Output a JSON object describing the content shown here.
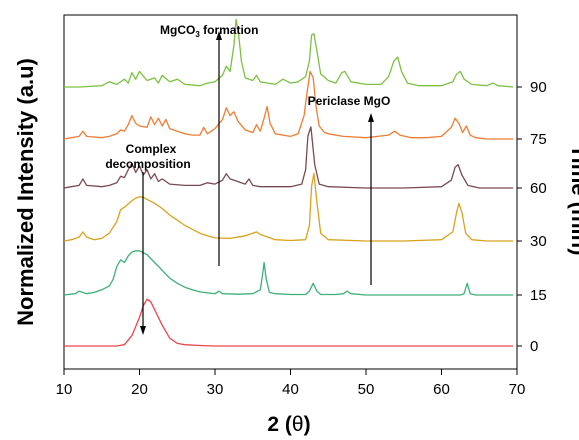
{
  "chart_data": {
    "type": "line",
    "xlabel_prefix": "2 (",
    "xlabel_theta": "θ",
    "xlabel_suffix": ")",
    "ylabel": "Normalized Intensity (a.u)",
    "y2label": "Time (min)",
    "xlim": [
      10,
      70
    ],
    "xticks": [
      "10",
      "20",
      "30",
      "40",
      "50",
      "60",
      "70"
    ],
    "xtick_values": [
      10,
      20,
      30,
      40,
      50,
      60,
      70
    ],
    "grid": false,
    "series": [
      {
        "name": "0",
        "color": "#e8474b",
        "baseline": 0,
        "x": [
          10,
          12,
          14,
          16,
          17,
          18,
          19,
          20,
          20.5,
          21,
          21.5,
          22,
          23,
          24,
          25,
          26,
          28,
          30,
          35,
          40,
          45,
          50,
          55,
          60,
          65,
          69.5
        ],
        "y": [
          0,
          0,
          0,
          0,
          0,
          0.05,
          0.4,
          1.1,
          1.55,
          1.8,
          1.7,
          1.4,
          0.8,
          0.3,
          0.1,
          0.05,
          0.02,
          0,
          0,
          0,
          0,
          0,
          0,
          0,
          0,
          0
        ]
      },
      {
        "name": "15",
        "color": "#3db07a",
        "baseline": 0,
        "x": [
          10,
          11.5,
          12,
          13,
          14,
          15,
          16,
          16.5,
          17,
          17.5,
          18,
          18.5,
          19,
          19.5,
          20,
          21,
          22,
          23,
          24,
          25,
          26,
          27,
          28,
          29,
          30,
          30.5,
          31,
          33,
          35,
          36,
          36.3,
          36.5,
          36.8,
          37.2,
          38,
          40,
          42,
          42.5,
          43,
          43.5,
          44,
          46,
          47,
          47.5,
          48,
          50,
          55,
          60,
          62.5,
          63,
          63.4,
          63.8,
          64.5,
          66,
          69.5
        ],
        "y": [
          0,
          0.05,
          0.15,
          0.05,
          0.1,
          0.2,
          0.35,
          0.6,
          1.1,
          1.35,
          1.25,
          1.5,
          1.65,
          1.7,
          1.7,
          1.55,
          1.25,
          0.95,
          0.65,
          0.45,
          0.3,
          0.2,
          0.12,
          0.08,
          0.05,
          0.15,
          0.05,
          0.03,
          0.05,
          0.2,
          0.8,
          1.25,
          0.6,
          0.1,
          0.05,
          0.02,
          0.02,
          0.15,
          0.45,
          0.15,
          0.02,
          0.02,
          0.05,
          0.15,
          0.05,
          0,
          0,
          0,
          0,
          0.05,
          0.45,
          0.05,
          0,
          0,
          0
        ]
      },
      {
        "name": "30",
        "color": "#d9a21f",
        "baseline": 0,
        "x": [
          10,
          11,
          12,
          12.5,
          13,
          14,
          15,
          16,
          17,
          17.5,
          18,
          19,
          19.5,
          20,
          20.5,
          21,
          22,
          23,
          24,
          25,
          26,
          27,
          28,
          29,
          30,
          32,
          34,
          35.5,
          36,
          37,
          38,
          40,
          42,
          42.5,
          42.8,
          43.1,
          43.5,
          44,
          45,
          50,
          55,
          60,
          61.5,
          62,
          62.3,
          62.7,
          63.2,
          64,
          66,
          69.5
        ],
        "y": [
          0,
          0.05,
          0.15,
          0.35,
          0.15,
          0.05,
          0.1,
          0.3,
          0.75,
          1.2,
          1.3,
          1.55,
          1.65,
          1.7,
          1.68,
          1.6,
          1.45,
          1.25,
          1.0,
          0.8,
          0.6,
          0.45,
          0.3,
          0.2,
          0.12,
          0.1,
          0.2,
          0.35,
          0.25,
          0.15,
          0.05,
          0.02,
          0.05,
          0.6,
          2.1,
          2.6,
          1.5,
          0.3,
          0.05,
          0,
          0,
          0.05,
          0.35,
          1.1,
          1.45,
          1.1,
          0.3,
          0.05,
          0,
          0
        ]
      },
      {
        "name": "60",
        "color": "#7a4a52",
        "baseline": 0,
        "x": [
          10,
          11,
          12,
          12.5,
          13,
          15,
          16,
          17,
          17.5,
          18,
          18.5,
          19,
          19.5,
          20,
          20.5,
          21,
          21.5,
          22,
          22.5,
          23,
          24,
          26,
          28,
          29,
          30,
          31,
          31.5,
          32,
          33,
          34,
          34.5,
          35,
          36,
          38,
          40,
          41.5,
          42,
          42.3,
          42.7,
          43.2,
          43.8,
          45,
          50,
          55,
          60,
          61.3,
          61.8,
          62.2,
          62.7,
          63.5,
          65,
          69.5
        ],
        "y": [
          0,
          0.05,
          0.1,
          0.35,
          0.1,
          0.05,
          0.1,
          0.2,
          0.45,
          0.4,
          0.7,
          0.95,
          0.6,
          0.85,
          0.5,
          0.7,
          0.35,
          0.55,
          0.25,
          0.35,
          0.15,
          0.1,
          0.1,
          0.2,
          0.15,
          0.3,
          0.55,
          0.35,
          0.25,
          0.15,
          0.35,
          0.1,
          0.05,
          0.05,
          0.05,
          0.15,
          0.7,
          2.0,
          2.35,
          0.9,
          0.15,
          0.05,
          0,
          0,
          0.05,
          0.3,
          0.8,
          0.9,
          0.5,
          0.1,
          0,
          0
        ]
      },
      {
        "name": "75",
        "color": "#ee7d33",
        "baseline": 0,
        "x": [
          10,
          11,
          12,
          12.5,
          13,
          15,
          16,
          17,
          17.5,
          18,
          18.5,
          19,
          19.5,
          20,
          21,
          21.5,
          22,
          22.5,
          23,
          23.5,
          24,
          25,
          26,
          27,
          28,
          28.5,
          29,
          30,
          31,
          31.5,
          32,
          32.5,
          33,
          34,
          35,
          35.5,
          36,
          36.5,
          36.9,
          37.3,
          38,
          40,
          41,
          41.8,
          42.2,
          42.6,
          43,
          43.4,
          43.8,
          44.5,
          45,
          47,
          50,
          53,
          53.8,
          54.5,
          56,
          58,
          60,
          61.3,
          61.8,
          62.3,
          62.8,
          63.3,
          63.8,
          64.5,
          66,
          69.5
        ],
        "y": [
          0,
          0.05,
          0.1,
          0.3,
          0.1,
          0.05,
          0.1,
          0.2,
          0.35,
          0.3,
          0.55,
          0.9,
          0.6,
          0.5,
          0.45,
          0.85,
          0.55,
          0.8,
          0.5,
          0.75,
          0.4,
          0.3,
          0.2,
          0.15,
          0.15,
          0.45,
          0.2,
          0.4,
          0.75,
          1.2,
          0.9,
          1.05,
          0.7,
          0.35,
          0.25,
          0.55,
          0.3,
          0.8,
          1.25,
          0.6,
          0.2,
          0.1,
          0.2,
          0.9,
          1.8,
          2.6,
          2.35,
          1.2,
          0.5,
          0.25,
          0.2,
          0.1,
          0.05,
          0.15,
          0.3,
          0.15,
          0.05,
          0.05,
          0.1,
          0.45,
          0.8,
          0.6,
          0.25,
          0.5,
          0.15,
          0.05,
          0,
          0
        ]
      },
      {
        "name": "90",
        "color": "#7cc142",
        "baseline": 0,
        "x": [
          10,
          12,
          15,
          16,
          17,
          18,
          18.5,
          19,
          19.5,
          20,
          21,
          22,
          22.5,
          23,
          24,
          25,
          26,
          28,
          29,
          30,
          31,
          31.5,
          32,
          32.5,
          32.8,
          33.1,
          33.5,
          34,
          35,
          35.5,
          36,
          37,
          38,
          39,
          40,
          41,
          42,
          42.5,
          42.8,
          43.1,
          43.5,
          44,
          45,
          46,
          46.8,
          47.2,
          48,
          50,
          52,
          53,
          53.7,
          54.2,
          54.7,
          55.5,
          57,
          60,
          61.5,
          62,
          62.5,
          63,
          64,
          66,
          66.8,
          67.5,
          69.5
        ],
        "y": [
          0,
          0,
          0.05,
          0.2,
          0.1,
          0.3,
          0.15,
          0.55,
          0.3,
          0.6,
          0.25,
          0.35,
          0.15,
          0.45,
          0.2,
          0.3,
          0.1,
          0.05,
          0.15,
          0.2,
          0.45,
          0.8,
          0.6,
          1.6,
          2.6,
          2.1,
          1.0,
          0.35,
          0.25,
          0.45,
          0.2,
          0.15,
          0.1,
          0.3,
          0.15,
          0.2,
          0.4,
          1.0,
          2.0,
          2.05,
          1.4,
          0.5,
          0.25,
          0.15,
          0.55,
          0.6,
          0.2,
          0.1,
          0.1,
          0.4,
          1.0,
          1.15,
          0.6,
          0.15,
          0.05,
          0.05,
          0.2,
          0.5,
          0.6,
          0.3,
          0.1,
          0.05,
          0.15,
          0.05,
          0
        ]
      }
    ],
    "right_labels": [
      "0",
      "15",
      "30",
      "60",
      "75",
      "90"
    ],
    "annotations": [
      {
        "id": "mgco3",
        "text_main": "MgCO",
        "text_sub": "3",
        "text_rest": " formation"
      },
      {
        "id": "complex",
        "line1": "Complex",
        "line2": "decomposition"
      },
      {
        "id": "periclase",
        "text": "Periclase MgO"
      }
    ]
  }
}
